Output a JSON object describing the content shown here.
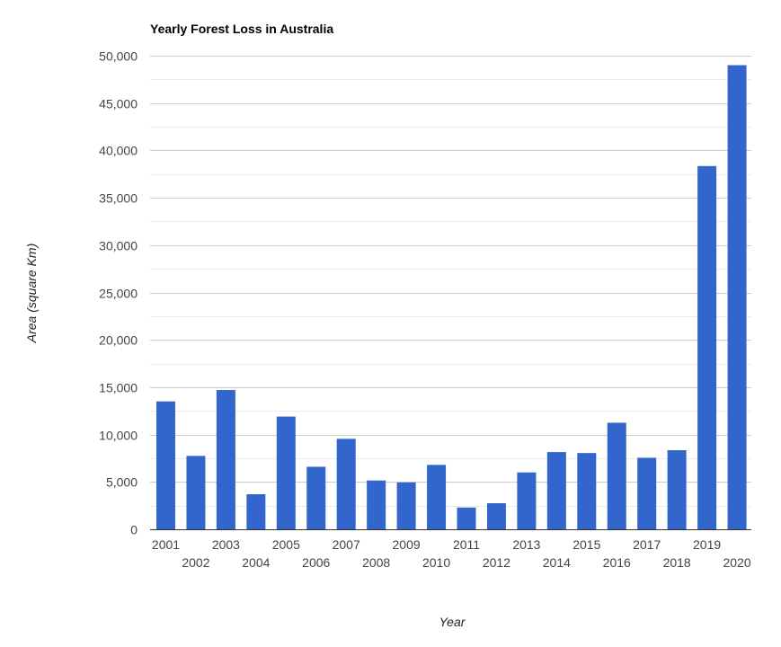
{
  "chart_data": {
    "type": "bar",
    "title": "Yearly Forest Loss in Australia",
    "xlabel": "Year",
    "ylabel": "Area (square Km)",
    "ylim": [
      0,
      50000
    ],
    "yticks": [
      0,
      5000,
      10000,
      15000,
      20000,
      25000,
      30000,
      35000,
      40000,
      45000,
      50000
    ],
    "ytick_labels": [
      "0",
      "5,000",
      "10,000",
      "15,000",
      "20,000",
      "25,000",
      "30,000",
      "35,000",
      "40,000",
      "45,000",
      "50,000"
    ],
    "categories": [
      "2001",
      "2002",
      "2003",
      "2004",
      "2005",
      "2006",
      "2007",
      "2008",
      "2009",
      "2010",
      "2011",
      "2012",
      "2013",
      "2014",
      "2015",
      "2016",
      "2017",
      "2018",
      "2019",
      "2020"
    ],
    "values": [
      13500,
      7750,
      14700,
      3700,
      11900,
      6600,
      9550,
      5150,
      4950,
      6800,
      2300,
      2750,
      6000,
      8150,
      8050,
      11250,
      7550,
      8350,
      38350,
      49000
    ],
    "bar_color": "#3366cc",
    "grid": true,
    "legend": "none"
  }
}
